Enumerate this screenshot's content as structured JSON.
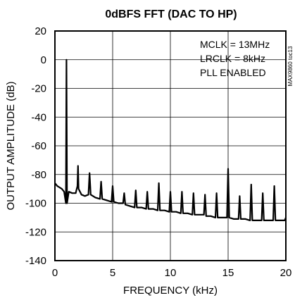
{
  "chart_data": {
    "type": "line",
    "title": "0dBFS FFT (DAC TO HP)",
    "xlabel": "FREQUENCY (kHz)",
    "ylabel": "OUTPUT AMPLITUDE (dB)",
    "xlim": [
      0,
      20
    ],
    "ylim": [
      -140,
      20
    ],
    "x_ticks": [
      0,
      5,
      10,
      15,
      20
    ],
    "y_ticks": [
      20,
      0,
      -20,
      -40,
      -60,
      -80,
      -100,
      -120,
      -140
    ],
    "grid": true,
    "annotations": [
      "MCLK = 13MHz",
      "LRCLK = 8kHz",
      "PLL ENABLED"
    ],
    "part_number": "MAX9860 toc13",
    "series": [
      {
        "x": [
          0.0,
          0.2,
          0.4,
          0.6,
          0.8,
          0.95,
          1.0,
          1.05,
          1.2,
          1.5,
          1.8,
          1.95,
          2.0,
          2.05,
          2.3,
          2.6,
          2.9,
          3.0,
          3.1,
          3.5,
          3.9,
          4.0,
          4.1,
          4.5,
          4.9,
          5.0,
          5.1,
          5.5,
          5.9,
          6.0,
          6.1,
          6.5,
          6.9,
          7.0,
          7.1,
          7.5,
          7.9,
          8.0,
          8.1,
          8.5,
          8.9,
          9.0,
          9.1,
          9.5,
          9.9,
          10.0,
          10.1,
          10.5,
          10.9,
          11.0,
          11.1,
          11.5,
          11.9,
          12.0,
          12.1,
          12.5,
          12.9,
          13.0,
          13.1,
          13.5,
          13.9,
          14.0,
          14.1,
          14.5,
          14.9,
          15.0,
          15.1,
          15.5,
          15.9,
          16.0,
          16.1,
          16.5,
          16.9,
          17.0,
          17.1,
          17.5,
          17.9,
          18.0,
          18.1,
          18.5,
          18.9,
          19.0,
          19.1,
          19.5,
          19.9,
          20.0
        ],
        "y": [
          -86,
          -88,
          -89,
          -90,
          -92,
          -100,
          0,
          -100,
          -92,
          -93,
          -93,
          -88,
          -74,
          -90,
          -94,
          -95,
          -94,
          -79,
          -94,
          -96,
          -97,
          -85,
          -97,
          -98,
          -99,
          -88,
          -99,
          -100,
          -100,
          -93,
          -101,
          -102,
          -103,
          -91,
          -103,
          -103,
          -104,
          -92,
          -104,
          -104,
          -105,
          -86,
          -105,
          -105,
          -106,
          -92,
          -106,
          -106,
          -107,
          -92,
          -107,
          -107,
          -108,
          -93,
          -108,
          -108,
          -108,
          -94,
          -109,
          -109,
          -110,
          -93,
          -110,
          -110,
          -110,
          -76,
          -110,
          -111,
          -111,
          -95,
          -111,
          -111,
          -112,
          -87,
          -112,
          -112,
          -112,
          -93,
          -112,
          -112,
          -112,
          -88,
          -112,
          -112,
          -112,
          -110
        ]
      }
    ]
  }
}
